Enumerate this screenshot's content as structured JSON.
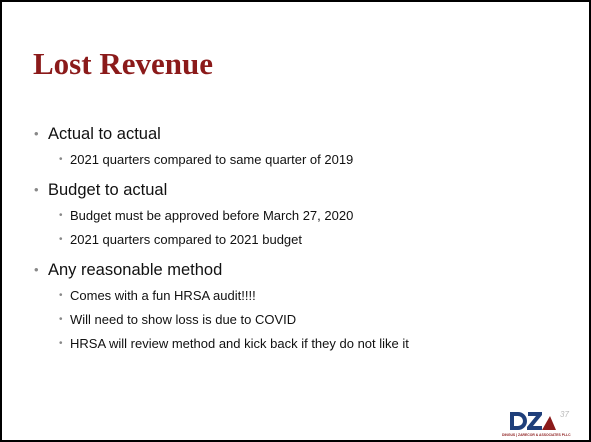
{
  "slide": {
    "title": "Lost Revenue",
    "bullets": [
      {
        "text": "Actual to actual",
        "sub": [
          "2021 quarters compared to same quarter of 2019"
        ]
      },
      {
        "text": "Budget to actual",
        "sub": [
          "Budget must be approved before March 27, 2020",
          "2021 quarters compared to 2021 budget"
        ]
      },
      {
        "text": "Any reasonable method",
        "sub": [
          "Comes with a fun HRSA audit!!!!",
          "Will need to show loss is due to COVID",
          "HRSA will review method and kick back if they do not like it"
        ]
      }
    ],
    "logo": {
      "company": "DINGUS | ZARECOR & ASSOCIATES PLLC"
    },
    "page_number": "37"
  }
}
